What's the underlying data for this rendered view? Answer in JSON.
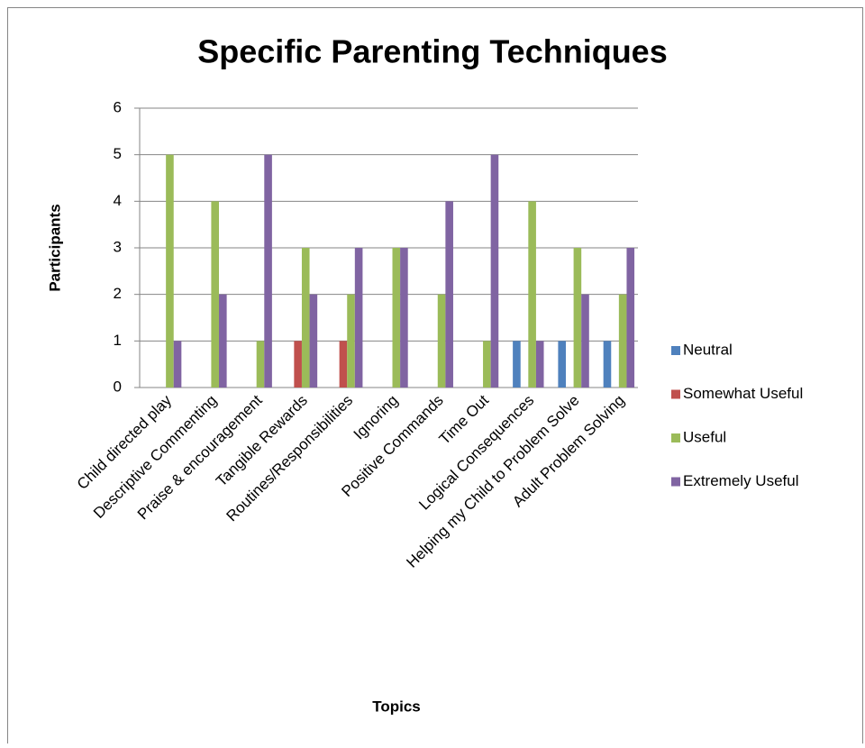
{
  "chart_data": {
    "type": "bar",
    "title": "Specific Parenting Techniques",
    "y_label": "Participants",
    "x_label": "Topics",
    "categories": [
      "Child directed play",
      "Descriptive Commenting",
      "Praise & encouragement",
      "Tangible Rewards",
      "Routines/Responsibilities",
      "Ignoring",
      "Positive Commands",
      "Time Out",
      "Logical Consequences",
      "Helping my Child to Problem Solve",
      "Adult Problem Solving"
    ],
    "series": [
      {
        "name": "Neutral",
        "color": "#4f81bd",
        "values": [
          0,
          0,
          0,
          0,
          0,
          0,
          0,
          0,
          1,
          1,
          1
        ]
      },
      {
        "name": "Somewhat Useful",
        "color": "#c0504d",
        "values": [
          0,
          0,
          0,
          1,
          1,
          0,
          0,
          0,
          0,
          0,
          0
        ]
      },
      {
        "name": "Useful",
        "color": "#9bbb59",
        "values": [
          5,
          4,
          1,
          3,
          2,
          3,
          2,
          1,
          4,
          3,
          2
        ]
      },
      {
        "name": "Extremely Useful",
        "color": "#8064a2",
        "values": [
          1,
          2,
          5,
          2,
          3,
          3,
          4,
          5,
          1,
          2,
          3
        ]
      }
    ],
    "ylim": [
      0,
      6
    ],
    "yticks": [
      0,
      1,
      2,
      3,
      4,
      5,
      6
    ],
    "grid": true,
    "legend": "right"
  }
}
